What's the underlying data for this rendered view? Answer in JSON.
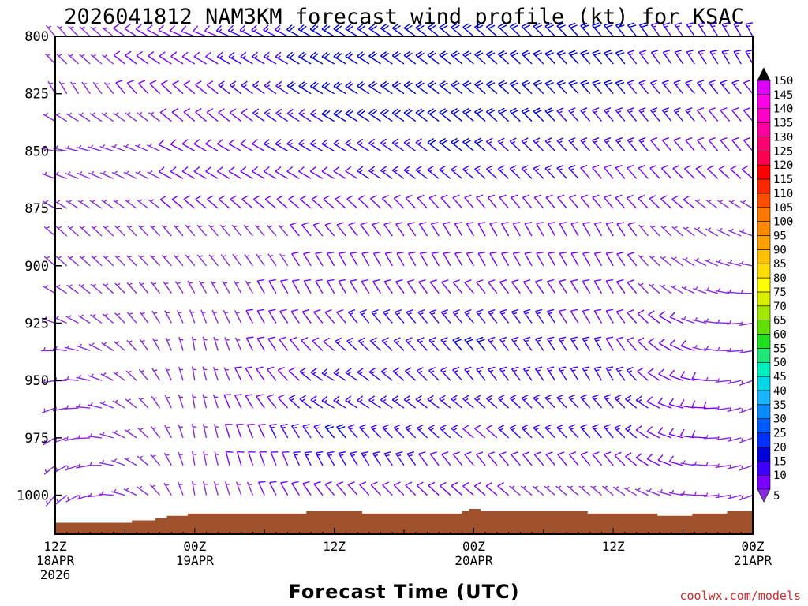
{
  "chart_data": {
    "type": "wind-barb time-height section",
    "title": "2026041812 NAM3KM forecast wind profile (kt) for KSAC",
    "xlabel": "Forecast Time (UTC)",
    "ylabel": "",
    "credit": "coolwx.com/models",
    "y_ticks": [
      800,
      825,
      850,
      875,
      900,
      925,
      950,
      975,
      1000
    ],
    "ylim": [
      800,
      1017
    ],
    "xlim_hours": [
      0,
      60
    ],
    "x_ticks": [
      {
        "hour": 0,
        "line1": "12Z",
        "line2": "18APR",
        "line3": "2026"
      },
      {
        "hour": 12,
        "line1": "00Z",
        "line2": "19APR",
        "line3": ""
      },
      {
        "hour": 24,
        "line1": "12Z",
        "line2": "",
        "line3": ""
      },
      {
        "hour": 36,
        "line1": "00Z",
        "line2": "20APR",
        "line3": ""
      },
      {
        "hour": 48,
        "line1": "12Z",
        "line2": "",
        "line3": ""
      },
      {
        "hour": 60,
        "line1": "00Z",
        "line2": "21APR",
        "line3": ""
      }
    ],
    "levels_hpa": [
      800,
      812,
      825,
      837,
      850,
      862,
      875,
      887,
      900,
      912,
      925,
      937,
      950,
      962,
      975,
      987,
      1000
    ],
    "colorbar": {
      "units": "kt",
      "ticks": [
        5,
        10,
        15,
        20,
        25,
        30,
        35,
        40,
        45,
        50,
        55,
        60,
        65,
        70,
        75,
        80,
        85,
        90,
        95,
        100,
        105,
        110,
        115,
        120,
        125,
        130,
        135,
        140,
        145,
        150
      ],
      "colors": [
        "#8a2be2",
        "#7a00ff",
        "#3d00ff",
        "#0000d8",
        "#0030ff",
        "#005aff",
        "#0a8cff",
        "#1ab4ff",
        "#00d8e8",
        "#00f0c0",
        "#20e878",
        "#20e020",
        "#60e000",
        "#a0e800",
        "#d8f000",
        "#ffff00",
        "#ffdc00",
        "#ffc000",
        "#ffa000",
        "#ff8c00",
        "#ff7800",
        "#ff5000",
        "#ff2800",
        "#ff0000",
        "#ff0050",
        "#ff0070",
        "#ff00a0",
        "#ff00c8",
        "#ff00e8",
        "#e000ff"
      ]
    },
    "terrain_surface_hpa": [
      {
        "hour": 0,
        "p": 1012
      },
      {
        "hour": 4.8,
        "p": 1012
      },
      {
        "hour": 6.6,
        "p": 1011
      },
      {
        "hour": 8.6,
        "p": 1010
      },
      {
        "hour": 9.6,
        "p": 1009
      },
      {
        "hour": 11.4,
        "p": 1008
      },
      {
        "hour": 20.6,
        "p": 1008
      },
      {
        "hour": 21.6,
        "p": 1007
      },
      {
        "hour": 25.4,
        "p": 1007
      },
      {
        "hour": 26.4,
        "p": 1008
      },
      {
        "hour": 34.0,
        "p": 1008
      },
      {
        "hour": 35.0,
        "p": 1007
      },
      {
        "hour": 35.6,
        "p": 1006
      },
      {
        "hour": 36.6,
        "p": 1007
      },
      {
        "hour": 44.8,
        "p": 1007
      },
      {
        "hour": 45.8,
        "p": 1008
      },
      {
        "hour": 51.0,
        "p": 1008
      },
      {
        "hour": 51.8,
        "p": 1009
      },
      {
        "hour": 53.8,
        "p": 1009
      },
      {
        "hour": 54.8,
        "p": 1008
      },
      {
        "hour": 56.8,
        "p": 1008
      },
      {
        "hour": 57.8,
        "p": 1007
      },
      {
        "hour": 59.0,
        "p": 1007
      },
      {
        "hour": 60,
        "p": 1006
      }
    ],
    "wind_field_note": "Barbs every 1 h at each level; approx: light (<10 kt) near surface and early hours, 15-20 kt NW in upper levels after hour 14, 15-20 kt low-level jet 975-1000 hPa hours 21-48",
    "wind_field": {
      "hours_step": 1,
      "samples": [
        {
          "hour": 0,
          "dir_deg": [
            320,
            315,
            330,
            300,
            280,
            290,
            300,
            310,
            310,
            300,
            290,
            270,
            260,
            250,
            240,
            230,
            220
          ],
          "speed_kt": [
            5,
            5,
            5,
            5,
            5,
            5,
            5,
            5,
            5,
            5,
            5,
            5,
            5,
            5,
            5,
            5,
            5
          ]
        },
        {
          "hour": 12,
          "dir_deg": [
            290,
            300,
            310,
            310,
            300,
            300,
            310,
            320,
            320,
            330,
            340,
            350,
            350,
            350,
            350,
            350,
            350
          ],
          "speed_kt": [
            10,
            10,
            10,
            8,
            8,
            8,
            8,
            6,
            6,
            5,
            5,
            5,
            5,
            5,
            5,
            5,
            5
          ]
        },
        {
          "hour": 24,
          "dir_deg": [
            300,
            300,
            300,
            300,
            300,
            300,
            310,
            320,
            330,
            330,
            320,
            310,
            300,
            300,
            320,
            330,
            320
          ],
          "speed_kt": [
            20,
            20,
            20,
            18,
            16,
            12,
            10,
            8,
            8,
            10,
            12,
            12,
            14,
            16,
            18,
            16,
            10
          ]
        },
        {
          "hour": 36,
          "dir_deg": [
            310,
            310,
            310,
            310,
            310,
            310,
            320,
            330,
            330,
            320,
            320,
            320,
            320,
            310,
            310,
            320,
            310
          ],
          "speed_kt": [
            20,
            20,
            22,
            20,
            18,
            14,
            10,
            8,
            8,
            10,
            16,
            18,
            16,
            14,
            12,
            10,
            8
          ]
        },
        {
          "hour": 48,
          "dir_deg": [
            320,
            320,
            320,
            320,
            320,
            320,
            320,
            330,
            330,
            330,
            330,
            330,
            330,
            320,
            320,
            320,
            310
          ],
          "speed_kt": [
            18,
            18,
            18,
            16,
            14,
            12,
            10,
            8,
            8,
            8,
            10,
            12,
            14,
            16,
            14,
            10,
            6
          ]
        },
        {
          "hour": 60,
          "dir_deg": [
            330,
            330,
            320,
            320,
            320,
            310,
            300,
            290,
            280,
            270,
            260,
            260,
            250,
            250,
            250,
            250,
            250
          ],
          "speed_kt": [
            16,
            14,
            12,
            10,
            8,
            8,
            6,
            5,
            5,
            5,
            5,
            5,
            5,
            5,
            5,
            5,
            5
          ]
        }
      ]
    }
  }
}
